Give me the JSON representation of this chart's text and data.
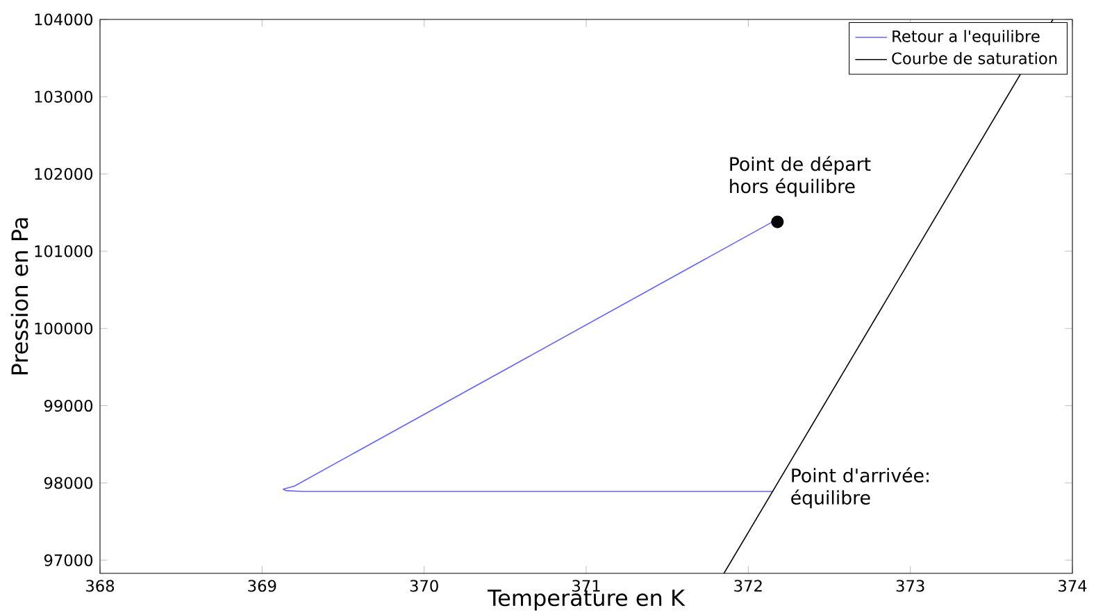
{
  "chart_data": {
    "type": "line",
    "xlabel": "Temperature en K",
    "ylabel": "Pression en Pa",
    "xlim": [
      368,
      374
    ],
    "ylim": [
      96830,
      104000
    ],
    "xticks": [
      368,
      369,
      370,
      371,
      372,
      373,
      374
    ],
    "yticks": [
      97000,
      98000,
      99000,
      100000,
      101000,
      102000,
      103000,
      104000
    ],
    "grid": false,
    "legend": "top right",
    "line_style": "solid",
    "series": [
      {
        "name": "Retour a l'equilibre",
        "color": "#6666ff",
        "x": [
          372.15,
          369.2,
          369.13,
          369.15,
          369.25,
          372.15
        ],
        "values": [
          101380,
          97960,
          97920,
          97900,
          97890,
          97890
        ]
      },
      {
        "name": "Courbe de saturation",
        "color": "#000000",
        "x": [
          371.85,
          373.88
        ],
        "values": [
          96830,
          104000
        ]
      },
      {
        "type": "scatter",
        "color": "#000000",
        "marker": "circle",
        "x": [
          372.18
        ],
        "values": [
          101380
        ]
      }
    ],
    "annotations": [
      {
        "text": "Point de départ hors équilibre",
        "x": 372.18,
        "y": 101380
      },
      {
        "text": "Point d'arrivée: équilibre",
        "x": 372.15,
        "y": 97890
      }
    ]
  }
}
